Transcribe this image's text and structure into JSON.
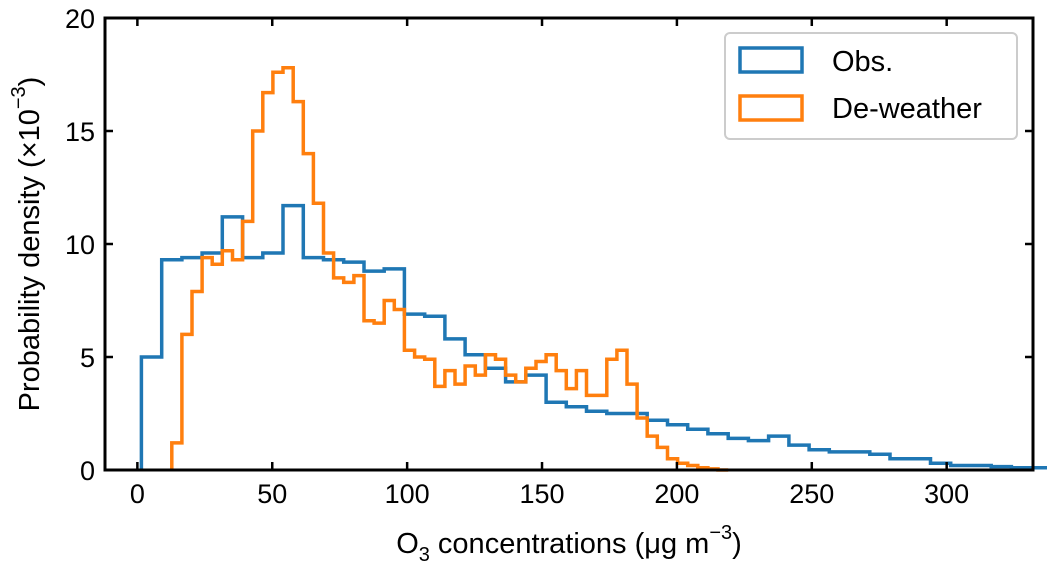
{
  "chart_data": {
    "type": "histogram-step",
    "xlabel": {
      "prefix": "O",
      "sub": "3",
      "middle": " concentrations (μg m",
      "sup": "−3",
      "suffix": ")"
    },
    "ylabel": {
      "prefix": "Probability density (×10",
      "sup": "−3",
      "suffix": ")"
    },
    "xlim": [
      -12,
      332
    ],
    "ylim": [
      0,
      20
    ],
    "xticks": [
      0,
      50,
      100,
      150,
      200,
      250,
      300
    ],
    "xtick_labels": [
      "0",
      "50",
      "100",
      "150",
      "200",
      "250",
      "300"
    ],
    "yticks": [
      0,
      5,
      10,
      15,
      20
    ],
    "ytick_labels": [
      "0",
      "5",
      "10",
      "15",
      "20"
    ],
    "grid": false,
    "legend": {
      "position": "top-right",
      "entries": [
        "Obs.",
        "De-weather"
      ]
    },
    "colors": {
      "Obs.": "#1f77b4",
      "De-weather": "#ff7f0e"
    },
    "series": [
      {
        "name": "Obs.",
        "bin_width": 7.5,
        "start": 1.5,
        "values": [
          5.0,
          9.3,
          9.4,
          9.6,
          11.2,
          9.4,
          9.6,
          11.7,
          9.4,
          9.3,
          9.2,
          8.8,
          8.9,
          6.9,
          6.8,
          5.8,
          5.1,
          4.5,
          3.9,
          4.2,
          3.0,
          2.8,
          2.6,
          2.5,
          2.5,
          2.2,
          2.0,
          1.8,
          1.6,
          1.4,
          1.3,
          1.5,
          1.1,
          0.9,
          0.8,
          0.8,
          0.7,
          0.5,
          0.5,
          0.3,
          0.2,
          0.2,
          0.15,
          0.1,
          0.1,
          0.1,
          0.1,
          0.08,
          0.05,
          0.05,
          0.05,
          0.04,
          0.03,
          0.02,
          0.02,
          0.02,
          0.01
        ]
      },
      {
        "name": "De-weather",
        "bin_width": 3.75,
        "start": 12.75,
        "values": [
          1.2,
          6.0,
          7.9,
          9.4,
          9.1,
          9.7,
          9.3,
          11.0,
          15.0,
          16.7,
          17.6,
          17.8,
          16.3,
          14.0,
          11.8,
          9.6,
          8.5,
          8.3,
          8.6,
          6.6,
          6.5,
          7.5,
          7.1,
          5.3,
          5.0,
          4.9,
          3.7,
          4.4,
          3.8,
          4.6,
          4.2,
          5.1,
          4.9,
          4.2,
          3.9,
          4.5,
          4.8,
          5.1,
          4.4,
          3.6,
          4.4,
          3.3,
          3.3,
          4.9,
          5.3,
          3.8,
          2.3,
          1.5,
          1.0,
          0.5,
          0.3,
          0.2,
          0.1,
          0.05,
          0.0
        ]
      }
    ]
  }
}
